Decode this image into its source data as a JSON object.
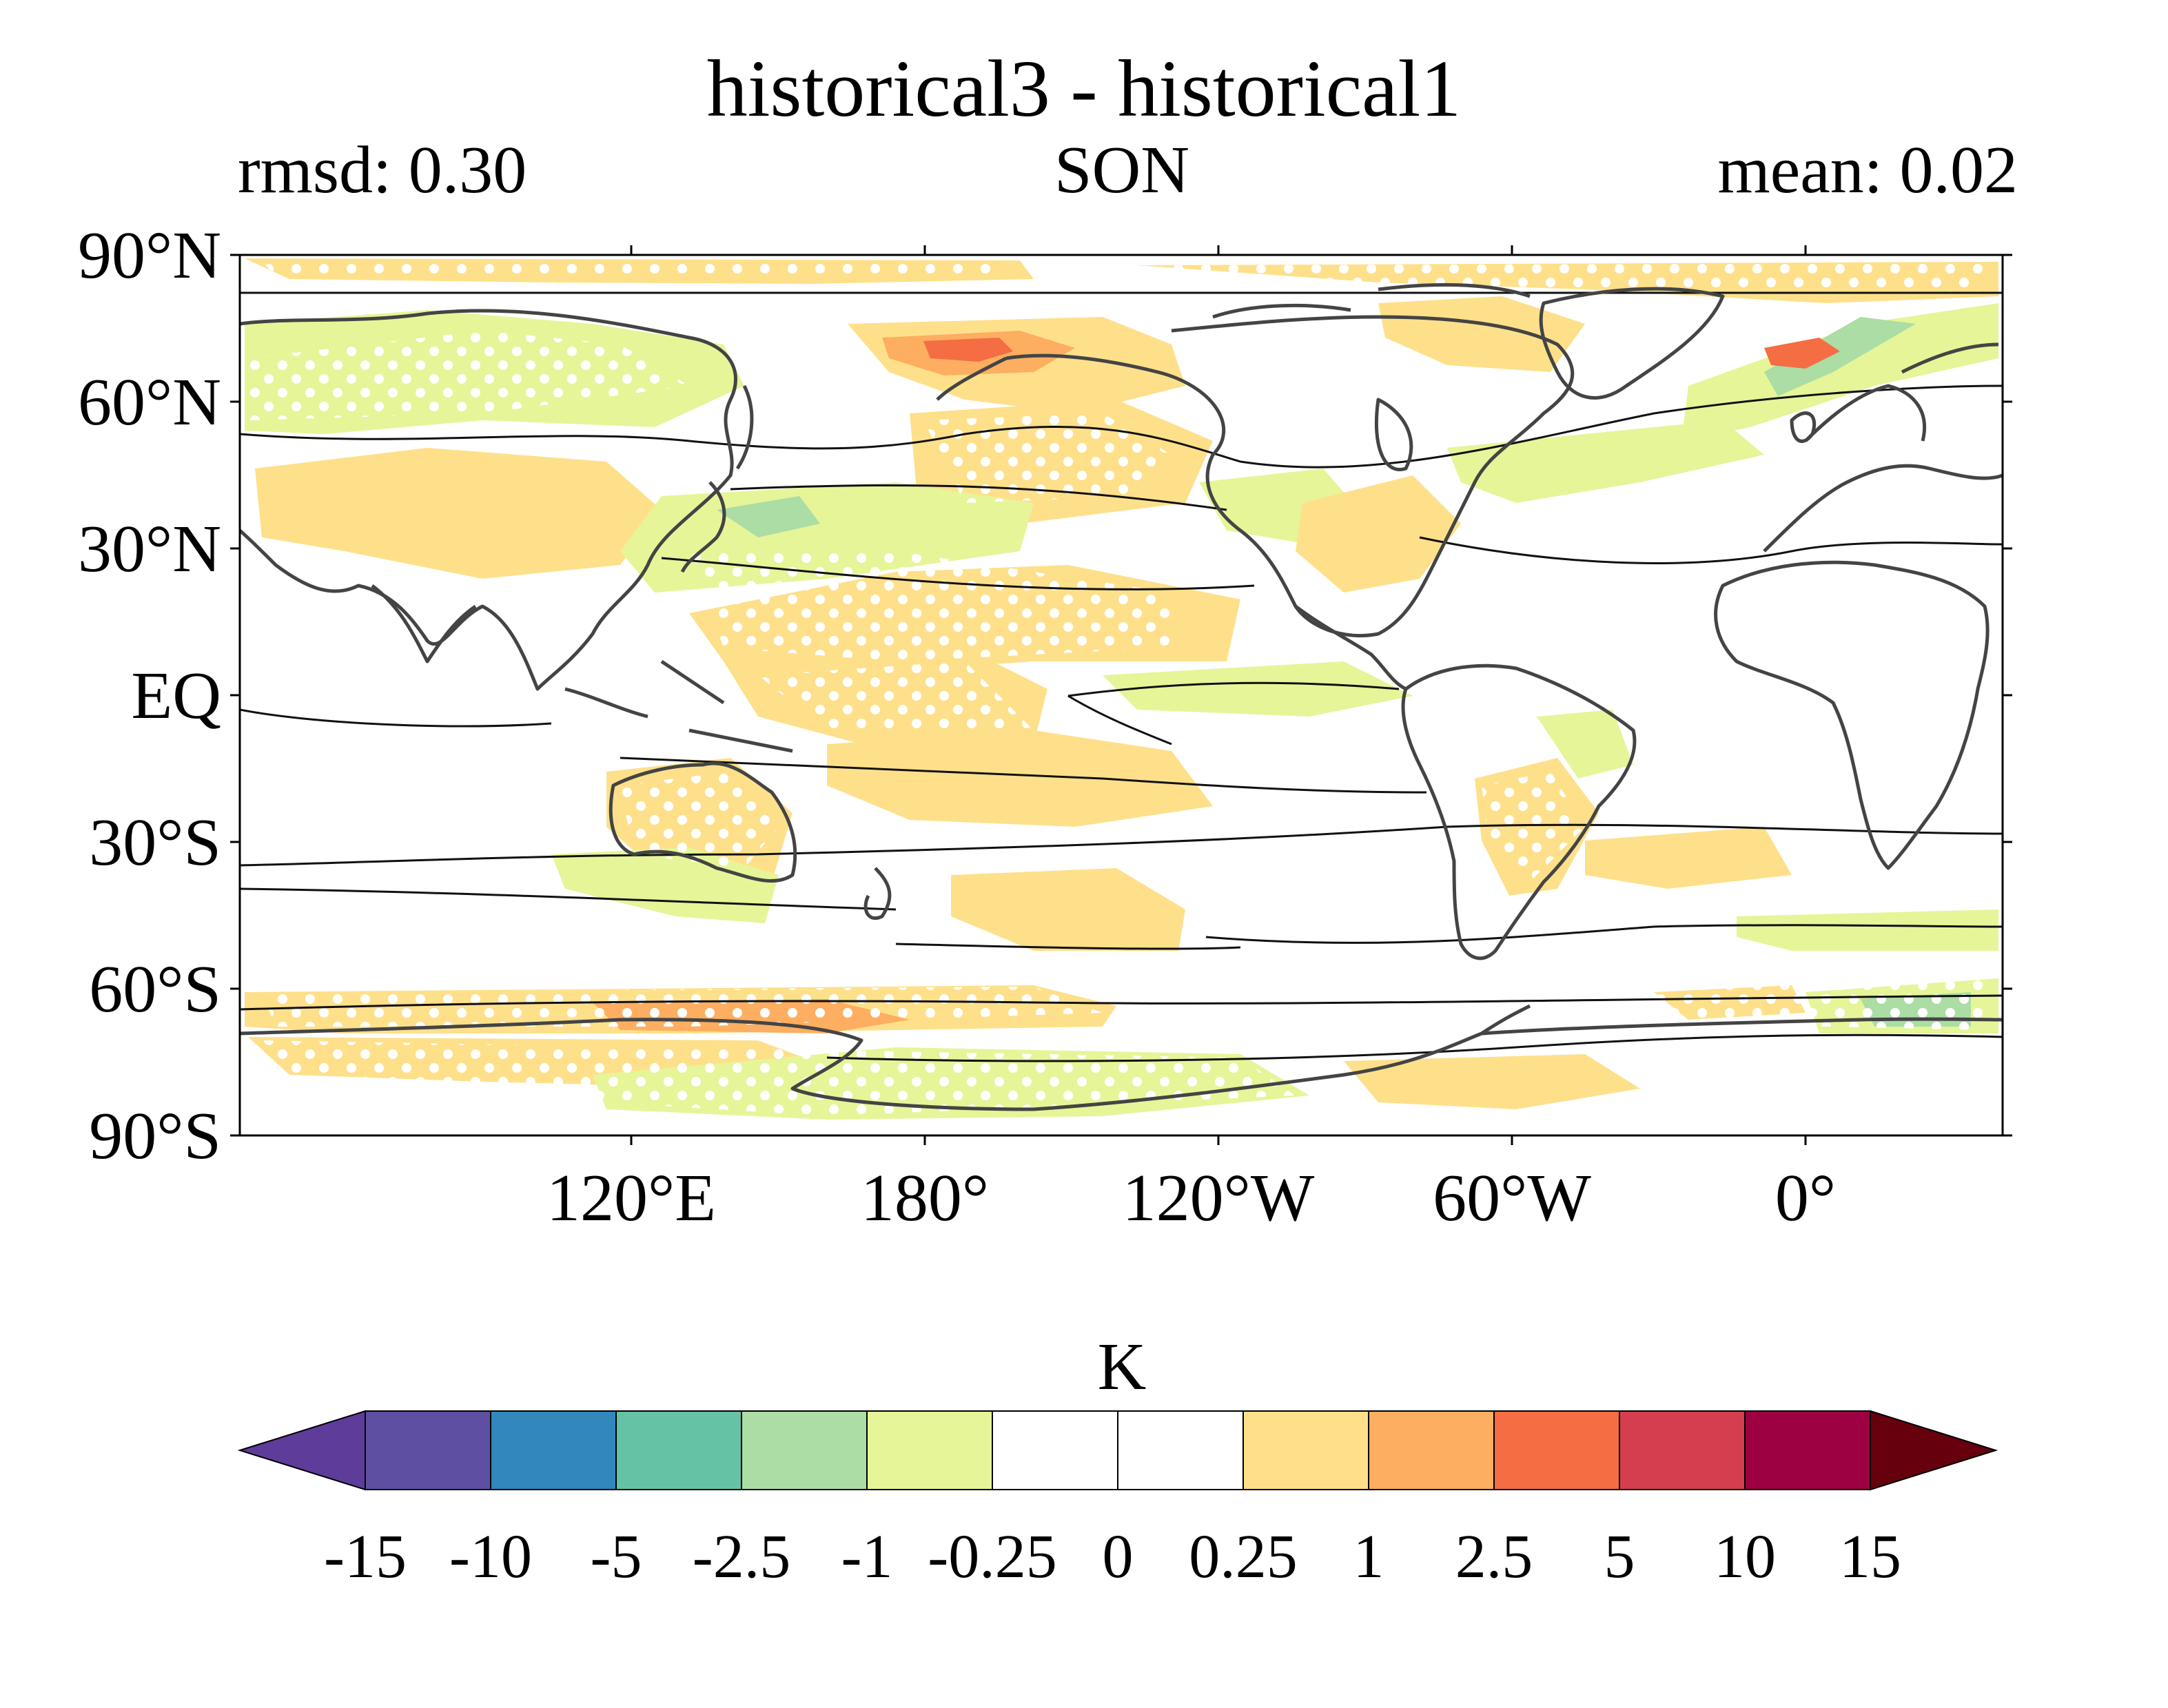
{
  "title": "historical3 - historical1",
  "subtitle_left": "rmsd: 0.30",
  "subtitle_center": "SON",
  "subtitle_right": "mean: 0.02",
  "map": {
    "projection": "PlateCarree",
    "central_longitude": 60,
    "lat_ticks": [
      "90°N",
      "60°N",
      "30°N",
      "EQ",
      "30°S",
      "60°S",
      "90°S"
    ],
    "lon_ticks": [
      "120°E",
      "180°",
      "120°W",
      "60°W",
      "0°"
    ],
    "lon_tick_values": [
      120,
      180,
      240,
      300,
      360
    ],
    "lat_tick_values": [
      90,
      60,
      30,
      0,
      -30,
      -60,
      -90
    ]
  },
  "colorbar": {
    "unit": "K",
    "extend": "both",
    "levels": [
      "-15",
      "-10",
      "-5",
      "-2.5",
      "-1",
      "-0.25",
      "0",
      "0.25",
      "1",
      "2.5",
      "5",
      "10",
      "15"
    ],
    "colors": [
      "#5e3c99",
      "#5e4fa2",
      "#3288bd",
      "#66c2a5",
      "#abdda4",
      "#e6f598",
      "#ffffff",
      "#ffffff",
      "#fee08b",
      "#fdae61",
      "#f46d43",
      "#d53e4f",
      "#9e0142",
      "#67000d"
    ]
  },
  "colors": {
    "warm_light": "#fee08b",
    "warm_medium": "#fdae61",
    "warm_strong": "#f46d43",
    "cool_light": "#e6f598",
    "cool_medium": "#abdda4",
    "cool_strong": "#66c2a5",
    "coast": "#444444",
    "contour": "#111111"
  }
}
